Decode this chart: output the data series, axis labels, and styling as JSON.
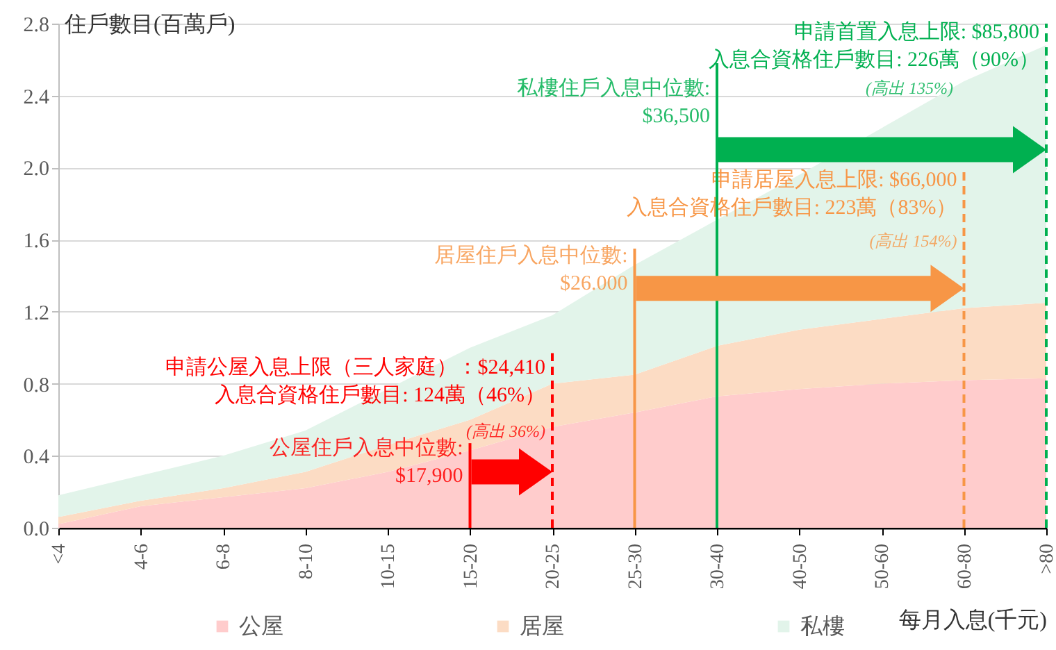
{
  "chart_data": {
    "type": "area",
    "stacked": true,
    "xlabel": "每月入息(千元)",
    "ylabel": "住戶數目(百萬戶)",
    "categories": [
      "<4",
      "4-6",
      "6-8",
      "8-10",
      "10-15",
      "15-20",
      "20-25",
      "25-30",
      "30-40",
      "40-50",
      "50-60",
      "60-80",
      ">80"
    ],
    "series": [
      {
        "name": "公屋",
        "color": "#ffcccc",
        "values": [
          0.02,
          0.12,
          0.17,
          0.22,
          0.31,
          0.43,
          0.56,
          0.64,
          0.73,
          0.77,
          0.8,
          0.82,
          0.83
        ]
      },
      {
        "name": "居屋",
        "color": "#fcdcc4",
        "values": [
          0.04,
          0.03,
          0.05,
          0.09,
          0.15,
          0.17,
          0.24,
          0.21,
          0.28,
          0.33,
          0.36,
          0.4,
          0.42
        ]
      },
      {
        "name": "私樓",
        "color": "#e2f4ea",
        "values": [
          0.12,
          0.14,
          0.18,
          0.23,
          0.31,
          0.4,
          0.38,
          0.61,
          0.7,
          0.86,
          1.06,
          1.26,
          1.43
        ]
      }
    ],
    "ylim": [
      0,
      2.8
    ],
    "yticks": [
      {
        "value": 0,
        "label": "0.0"
      },
      0.4,
      0.8,
      1.2,
      1.6,
      {
        "value": 2,
        "label": "2.0"
      },
      2.4,
      2.8
    ],
    "grid": "y",
    "legend": "bottom",
    "ref_lines": [
      {
        "axis": "x",
        "value": "15-20",
        "label": "公屋住戶入息中位數:\n$17,900",
        "color": "#ff0000",
        "line_style": "solid"
      },
      {
        "axis": "x",
        "value": "20-25",
        "label": "申請公屋入息上限（三人家庭）：$24,410\n入息合資格住戶數目: 124萬（46%）",
        "color": "#ff0000",
        "line_style": "dashed"
      },
      {
        "axis": "x",
        "value": "25-30",
        "label": "居屋住戶入息中位數:\n$26.000",
        "color": "#f79646",
        "line_style": "solid"
      },
      {
        "axis": "x",
        "value": "60-80",
        "label": "申請居屋入息上限: $66,000\n入息合資格住戶數目: 223萬（83%）",
        "color": "#f79646",
        "line_style": "dashed"
      },
      {
        "axis": "x",
        "value": "30-40",
        "label": "私樓住戶入息中位數:\n$36,500",
        "color": "#00b050",
        "line_style": "solid"
      },
      {
        "axis": "x",
        "value": ">80",
        "label": "申請首置入息上限: $85,800\n入息合資格住戶數目: 226萬（90%）",
        "color": "#00b050",
        "line_style": "dashed"
      }
    ],
    "annotations": [
      "(高出 36%)",
      "(高出 154%)",
      "(高出 135%)"
    ]
  }
}
